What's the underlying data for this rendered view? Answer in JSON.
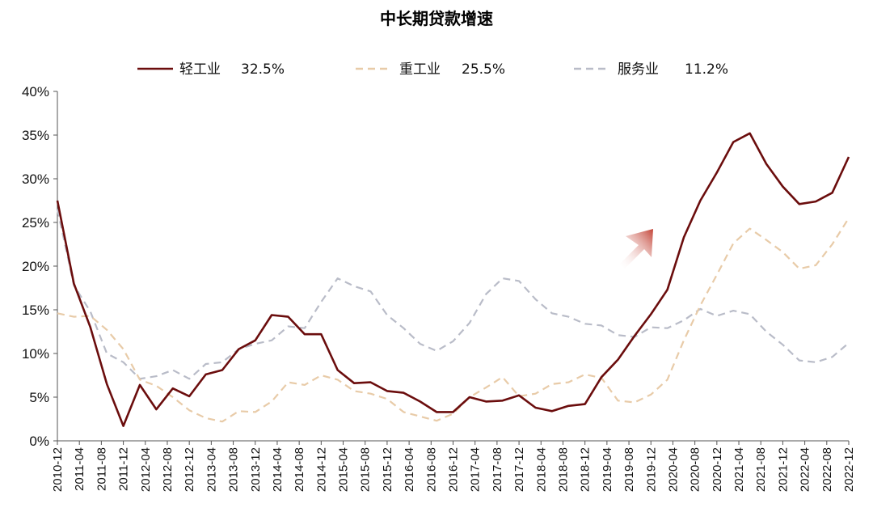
{
  "chart_data": {
    "type": "line",
    "title": "中长期贷款增速",
    "xlabel": "",
    "ylabel": "",
    "ylim": [
      0,
      40
    ],
    "y_ticks": [
      "0%",
      "5%",
      "10%",
      "15%",
      "20%",
      "25%",
      "30%",
      "35%",
      "40%"
    ],
    "x_ticks": [
      "2010-12",
      "2011-04",
      "2011-08",
      "2011-12",
      "2012-04",
      "2012-08",
      "2012-12",
      "2013-04",
      "2013-08",
      "2013-12",
      "2014-04",
      "2014-08",
      "2014-12",
      "2015-04",
      "2015-08",
      "2015-12",
      "2016-04",
      "2016-08",
      "2016-12",
      "2017-04",
      "2017-08",
      "2017-12",
      "2018-04",
      "2018-08",
      "2018-12",
      "2019-04",
      "2019-08",
      "2019-12",
      "2020-04",
      "2020-08",
      "2020-12",
      "2021-04",
      "2021-08",
      "2021-12",
      "2022-04",
      "2022-08",
      "2022-12"
    ],
    "grid": false,
    "legend_position": "top",
    "series": [
      {
        "name": "轻工业",
        "latest_label": "32.5%",
        "color": "#6b0d0d",
        "style": "solid",
        "values": [
          27.5,
          18.0,
          13.0,
          6.5,
          1.7,
          6.4,
          3.6,
          6.0,
          5.1,
          7.6,
          8.1,
          10.5,
          11.5,
          14.4,
          14.2,
          12.2,
          12.2,
          8.1,
          6.6,
          6.7,
          5.7,
          5.5,
          4.5,
          3.3,
          3.3,
          5.0,
          4.5,
          4.6,
          5.2,
          3.8,
          3.4,
          4.0,
          4.2,
          7.3,
          9.3,
          12.0,
          14.5,
          17.3,
          23.3,
          27.5,
          30.7,
          34.2,
          35.2,
          31.7,
          29.1,
          27.1,
          27.4,
          28.4,
          32.5
        ]
      },
      {
        "name": "重工业",
        "latest_label": "25.5%",
        "color": "#e8cba8",
        "style": "dashed",
        "values": [
          14.6,
          14.2,
          14.3,
          12.7,
          10.5,
          7.0,
          6.3,
          5.0,
          3.5,
          2.6,
          2.2,
          3.4,
          3.3,
          4.5,
          6.7,
          6.4,
          7.5,
          7.0,
          5.7,
          5.4,
          4.8,
          3.3,
          2.8,
          2.3,
          3.1,
          5.0,
          6.1,
          7.3,
          5.1,
          5.4,
          6.5,
          6.7,
          7.6,
          7.2,
          4.6,
          4.4,
          5.3,
          7.0,
          11.5,
          15.5,
          19.0,
          22.6,
          24.3,
          23.0,
          21.6,
          19.7,
          20.1,
          22.5,
          25.5
        ]
      },
      {
        "name": "服务业",
        "latest_label": "11.2%",
        "color": "#b9bcc8",
        "style": "dashed",
        "values": [
          26.5,
          17.8,
          14.8,
          10.0,
          9.0,
          7.1,
          7.4,
          8.1,
          7.1,
          8.8,
          9.0,
          10.5,
          11.1,
          11.5,
          13.1,
          12.9,
          15.9,
          18.6,
          17.7,
          17.1,
          14.4,
          12.9,
          11.1,
          10.3,
          11.4,
          13.5,
          16.8,
          18.6,
          18.3,
          16.2,
          14.6,
          14.2,
          13.4,
          13.2,
          12.1,
          11.9,
          13.0,
          12.9,
          13.8,
          15.1,
          14.3,
          14.9,
          14.5,
          12.5,
          11.0,
          9.2,
          9.0,
          9.6,
          11.2
        ]
      }
    ]
  }
}
